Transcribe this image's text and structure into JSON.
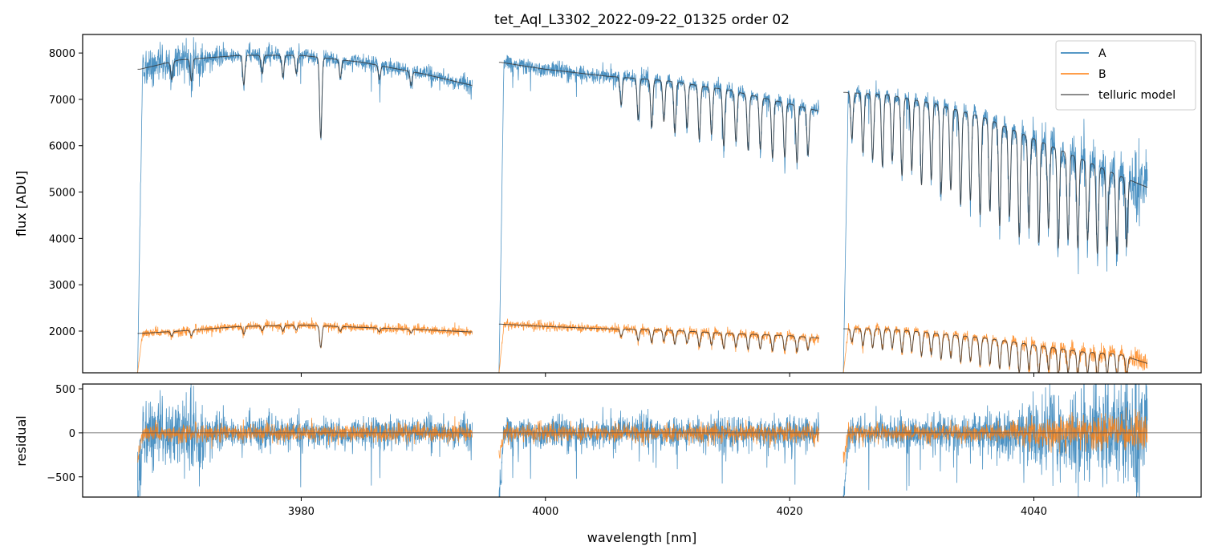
{
  "chart_data": [
    {
      "type": "line",
      "title": "tet_Aql_L3302_2022-09-22_01325  order 02",
      "xlabel": "",
      "ylabel": "flux [ADU]",
      "xlim": [
        3962.1,
        4053.7
      ],
      "ylim": [
        1100,
        8400
      ],
      "yticks": [
        2000,
        3000,
        4000,
        5000,
        6000,
        7000,
        8000
      ],
      "xticks": [
        3980,
        4000,
        4020,
        4040
      ],
      "grid": false,
      "legend": "top-right",
      "segments": [
        [
          3966.6,
          3994.0
        ],
        [
          3996.2,
          4022.4
        ],
        [
          4024.4,
          4049.3
        ]
      ],
      "series": [
        {
          "name": "A",
          "color": "#1f77b4",
          "continuum": [
            [
              [
                3966.8,
                7650
              ],
              [
                3970,
                7850
              ],
              [
                3975,
                7950
              ],
              [
                3980,
                7950
              ],
              [
                3985,
                7800
              ],
              [
                3990,
                7550
              ],
              [
                3994,
                7300
              ]
            ],
            [
              [
                3996.3,
                7800
              ],
              [
                4000,
                7650
              ],
              [
                4005,
                7500
              ],
              [
                4010,
                7400
              ],
              [
                4015,
                7200
              ],
              [
                4020,
                6900
              ],
              [
                4022.4,
                6750
              ]
            ],
            [
              [
                4024.5,
                7150
              ],
              [
                4028,
                7100
              ],
              [
                4032,
                6900
              ],
              [
                4036,
                6600
              ],
              [
                4040,
                6150
              ],
              [
                4044,
                5700
              ],
              [
                4047,
                5350
              ],
              [
                4049.3,
                5100
              ]
            ]
          ]
        },
        {
          "name": "B",
          "color": "#ff7f0e",
          "continuum": [
            [
              [
                3966.8,
                1950
              ],
              [
                3970,
                2000
              ],
              [
                3975,
                2100
              ],
              [
                3980,
                2130
              ],
              [
                3985,
                2080
              ],
              [
                3990,
                2030
              ],
              [
                3994,
                1980
              ]
            ],
            [
              [
                3996.3,
                2150
              ],
              [
                4000,
                2100
              ],
              [
                4005,
                2050
              ],
              [
                4010,
                2020
              ],
              [
                4015,
                1950
              ],
              [
                4020,
                1900
              ],
              [
                4022.4,
                1850
              ]
            ],
            [
              [
                4024.5,
                2050
              ],
              [
                4028,
                2050
              ],
              [
                4032,
                1950
              ],
              [
                4036,
                1850
              ],
              [
                4040,
                1700
              ],
              [
                4044,
                1550
              ],
              [
                4047,
                1500
              ],
              [
                4049.3,
                1300
              ]
            ]
          ]
        },
        {
          "name": "telluric model",
          "color": "#555555"
        }
      ],
      "telluric_lines": [
        [
          3969.4,
          0.05
        ],
        [
          3971.0,
          0.06
        ],
        [
          3975.3,
          0.08
        ],
        [
          3976.8,
          0.05
        ],
        [
          3978.5,
          0.06
        ],
        [
          3979.6,
          0.05
        ],
        [
          3981.6,
          0.22
        ],
        [
          3983.2,
          0.05
        ],
        [
          3986.4,
          0.04
        ],
        [
          3989.0,
          0.04
        ],
        [
          4006.2,
          0.08
        ],
        [
          4007.6,
          0.12
        ],
        [
          4008.7,
          0.14
        ],
        [
          4009.7,
          0.12
        ],
        [
          4010.6,
          0.15
        ],
        [
          4011.6,
          0.13
        ],
        [
          4012.6,
          0.16
        ],
        [
          4013.6,
          0.14
        ],
        [
          4014.6,
          0.17
        ],
        [
          4015.6,
          0.15
        ],
        [
          4016.6,
          0.17
        ],
        [
          4017.6,
          0.16
        ],
        [
          4018.6,
          0.18
        ],
        [
          4019.6,
          0.17
        ],
        [
          4020.6,
          0.18
        ],
        [
          4021.5,
          0.15
        ],
        [
          4025.1,
          0.14
        ],
        [
          4026.0,
          0.18
        ],
        [
          4026.8,
          0.2
        ],
        [
          4027.6,
          0.22
        ],
        [
          4028.4,
          0.2
        ],
        [
          4029.2,
          0.24
        ],
        [
          4030.0,
          0.22
        ],
        [
          4030.8,
          0.26
        ],
        [
          4031.6,
          0.24
        ],
        [
          4032.4,
          0.28
        ],
        [
          4033.2,
          0.26
        ],
        [
          4034.0,
          0.3
        ],
        [
          4034.8,
          0.28
        ],
        [
          4035.6,
          0.32
        ],
        [
          4036.4,
          0.3
        ],
        [
          4037.2,
          0.34
        ],
        [
          4038.0,
          0.3
        ],
        [
          4038.8,
          0.36
        ],
        [
          4039.6,
          0.32
        ],
        [
          4040.4,
          0.36
        ],
        [
          4041.2,
          0.3
        ],
        [
          4042.0,
          0.36
        ],
        [
          4042.8,
          0.32
        ],
        [
          4043.6,
          0.34
        ],
        [
          4044.4,
          0.3
        ],
        [
          4045.2,
          0.34
        ],
        [
          4046.0,
          0.3
        ],
        [
          4046.8,
          0.32
        ],
        [
          4047.6,
          0.28
        ]
      ],
      "legend_entries": [
        "A",
        "B",
        "telluric model"
      ]
    },
    {
      "type": "line",
      "ylabel": "residual",
      "xlabel": "wavelength [nm]",
      "xlim": [
        3962.1,
        4053.7
      ],
      "ylim": [
        -730,
        555
      ],
      "yticks": [
        -500,
        0,
        500
      ],
      "xticks": [
        3980,
        4000,
        4020,
        4040
      ],
      "series": [
        {
          "name": "A",
          "color": "#1f77b4"
        },
        {
          "name": "B",
          "color": "#ff7f0e"
        }
      ]
    }
  ]
}
